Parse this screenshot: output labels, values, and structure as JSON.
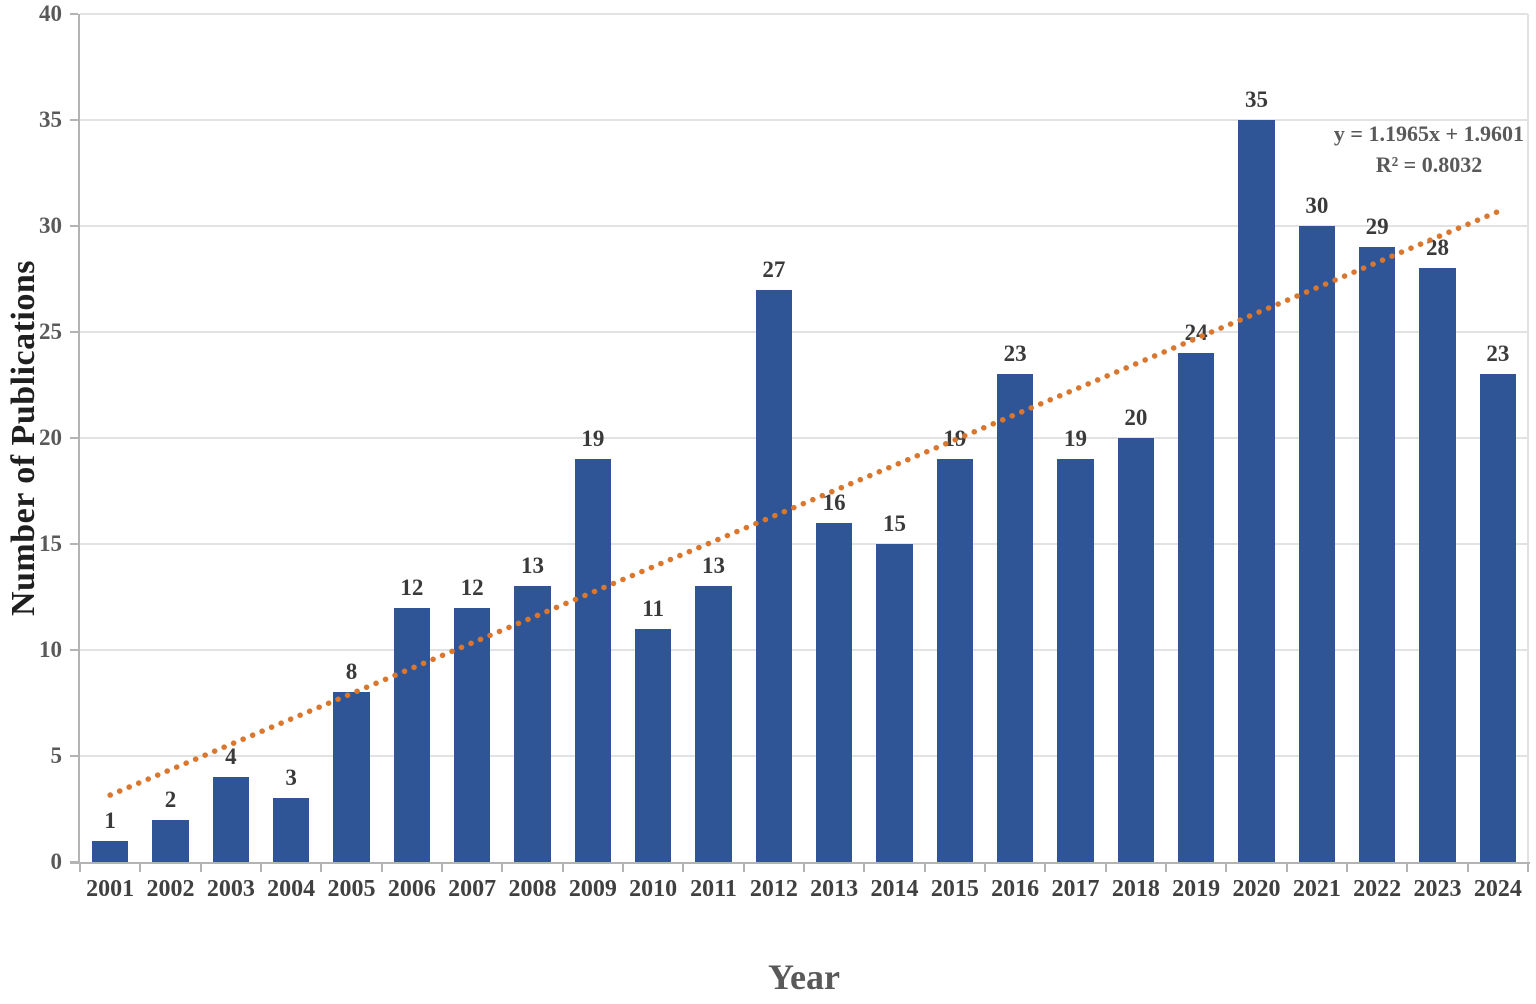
{
  "chart_data": {
    "type": "bar",
    "title": "",
    "xlabel": "Year",
    "ylabel": "Number of Publications",
    "categories": [
      "2001",
      "2002",
      "2003",
      "2004",
      "2005",
      "2006",
      "2007",
      "2008",
      "2009",
      "2010",
      "2011",
      "2012",
      "2013",
      "2014",
      "2015",
      "2016",
      "2017",
      "2018",
      "2019",
      "2020",
      "2021",
      "2022",
      "2023",
      "2024"
    ],
    "values": [
      1,
      2,
      4,
      3,
      8,
      12,
      12,
      13,
      19,
      11,
      13,
      27,
      16,
      15,
      19,
      23,
      19,
      20,
      24,
      35,
      30,
      29,
      28,
      23
    ],
    "ylim": [
      0,
      40
    ],
    "ytick_step": 5,
    "grid": "horizontal",
    "legend": "none",
    "bar_color": "#2F5597",
    "gridline_color": "#E2E2E2",
    "axis_color": "#B3B3B3",
    "tick_label_color": "#595959",
    "category_label_color": "#404040",
    "value_label_color": "#3A3A3A",
    "trendline": {
      "type": "linear",
      "slope": 1.1965,
      "intercept": 1.9601,
      "equation_label": "y = 1.1965x + 1.9601",
      "r_squared_label": "R² = 0.8032",
      "color": "#D9772F",
      "style": "dotted"
    }
  }
}
